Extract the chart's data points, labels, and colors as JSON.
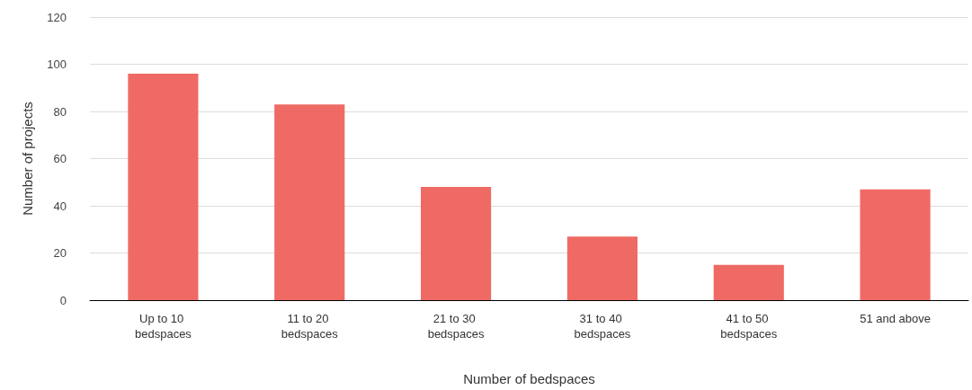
{
  "chart_data": {
    "type": "bar",
    "xlabel": "Number of bedspaces",
    "ylabel": "Number of projects",
    "categories": [
      "Up to 10 bedspaces",
      "11 to 20 bedspaces",
      "21 to 30 bedspaces",
      "31 to 40 bedspaces",
      "41 to 50 bedspaces",
      "51 and above"
    ],
    "values": [
      96,
      83,
      48,
      27,
      15,
      47
    ],
    "color": "#ef6a64",
    "ylim": [
      0,
      120
    ],
    "yticks": [
      0,
      20,
      40,
      60,
      80,
      100,
      120
    ],
    "grid": "y"
  }
}
